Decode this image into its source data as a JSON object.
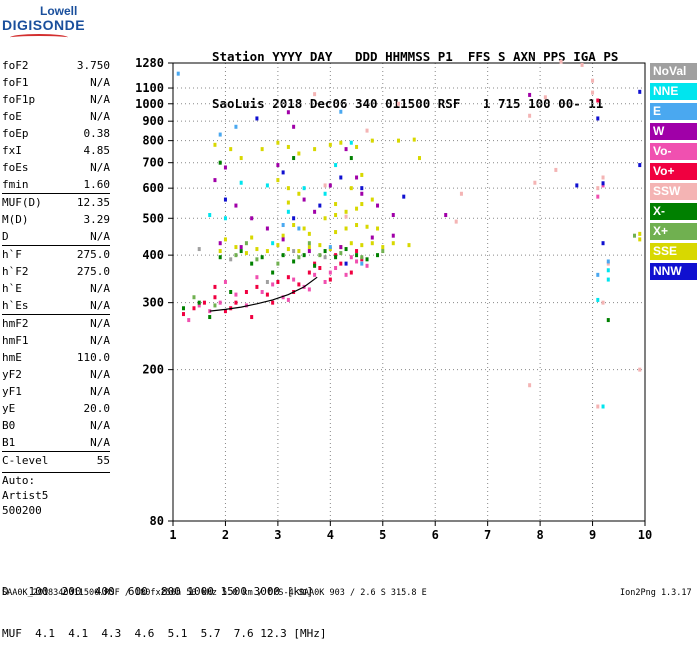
{
  "logo": {
    "line1": "Lowell",
    "line2": "DIGISONDE"
  },
  "header": {
    "line1": "Station YYYY DAY   DDD HHMMSS P1  FFS S AXN PPS IGA PS",
    "line2": "SaoLuis 2018 Dec06 340 011500 RSF   1 715 100 00- 11"
  },
  "params": [
    {
      "k": "foF2",
      "v": "3.750"
    },
    {
      "k": "foF1",
      "v": "N/A"
    },
    {
      "k": "foF1p",
      "v": "N/A"
    },
    {
      "k": "foE",
      "v": "N/A"
    },
    {
      "k": "foEp",
      "v": "0.38"
    },
    {
      "k": "fxI",
      "v": "4.85"
    },
    {
      "k": "foEs",
      "v": "N/A"
    },
    {
      "k": "fmin",
      "v": "1.60"
    },
    {
      "k": "MUF(D)",
      "v": "12.35"
    },
    {
      "k": "M(D)",
      "v": "3.29"
    },
    {
      "k": "D",
      "v": "N/A"
    },
    {
      "k": "h`F",
      "v": "275.0"
    },
    {
      "k": "h`F2",
      "v": "275.0"
    },
    {
      "k": "h`E",
      "v": "N/A"
    },
    {
      "k": "h`Es",
      "v": "N/A"
    },
    {
      "k": "hmF2",
      "v": "N/A"
    },
    {
      "k": "hmF1",
      "v": "N/A"
    },
    {
      "k": "hmE",
      "v": "110.0"
    },
    {
      "k": "yF2",
      "v": "N/A"
    },
    {
      "k": "yF1",
      "v": "N/A"
    },
    {
      "k": "yE",
      "v": "20.0"
    },
    {
      "k": "B0",
      "v": "N/A"
    },
    {
      "k": "B1",
      "v": "N/A"
    },
    {
      "k": "C-level",
      "v": "55"
    }
  ],
  "auto": [
    "Auto:",
    "Artist5",
    "500200"
  ],
  "legend": [
    {
      "label": "NoVal",
      "color": "#a0a0a0"
    },
    {
      "label": "NNE",
      "color": "#00e5ee"
    },
    {
      "label": "E",
      "color": "#4aa8f0"
    },
    {
      "label": "W",
      "color": "#a000a8"
    },
    {
      "label": "Vo-",
      "color": "#f050b0"
    },
    {
      "label": "Vo+",
      "color": "#f00040"
    },
    {
      "label": "SSW",
      "color": "#f4b4b4"
    },
    {
      "label": "X-",
      "color": "#008000"
    },
    {
      "label": "X+",
      "color": "#70b050"
    },
    {
      "label": "SSE",
      "color": "#d8d800"
    },
    {
      "label": "NNW",
      "color": "#1010d0"
    }
  ],
  "bottom": {
    "line1": "D   100  200  400  600  800 1000 1500 3000 [km]",
    "line2": "MUF  4.1  4.1  4.3  4.6  5.1  5.7  7.6 12.3 [MHz]"
  },
  "footer": {
    "left": "SAA0K_2018340011500.RSF / 180fx256h 50 kHz 5.0 km / DPS-4 SAA0K 903 / 2.6 S 315.8 E",
    "right": "Ion2Png 1.3.17"
  },
  "chart_data": {
    "type": "scatter",
    "title": "",
    "xlabel": "",
    "ylabel": "",
    "xlim": [
      1,
      10
    ],
    "ylim": [
      80,
      1280
    ],
    "yscale": "log",
    "x_ticks": [
      1,
      2,
      3,
      4,
      5,
      6,
      7,
      8,
      9,
      10
    ],
    "y_ticks": [
      80,
      200,
      300,
      400,
      500,
      600,
      700,
      800,
      900,
      1000,
      1100,
      1280
    ],
    "grid": true,
    "legend_position": "right",
    "series": [
      {
        "name": "SSE",
        "color": "#d8d800",
        "points": [
          [
            1.8,
            780
          ],
          [
            2.1,
            760
          ],
          [
            2.3,
            720
          ],
          [
            2.7,
            760
          ],
          [
            3.0,
            790
          ],
          [
            3.2,
            770
          ],
          [
            3.4,
            740
          ],
          [
            3.7,
            760
          ],
          [
            4.0,
            780
          ],
          [
            4.2,
            790
          ],
          [
            4.5,
            770
          ],
          [
            4.8,
            800
          ],
          [
            5.3,
            800
          ],
          [
            5.6,
            805
          ],
          [
            1.9,
            410
          ],
          [
            2.2,
            420
          ],
          [
            2.4,
            405
          ],
          [
            2.6,
            415
          ],
          [
            2.8,
            410
          ],
          [
            3.0,
            425
          ],
          [
            3.2,
            415
          ],
          [
            3.4,
            410
          ],
          [
            3.6,
            420
          ],
          [
            3.8,
            425
          ],
          [
            4.0,
            415
          ],
          [
            4.2,
            420
          ],
          [
            4.4,
            430
          ],
          [
            4.6,
            425
          ],
          [
            4.8,
            430
          ],
          [
            5.0,
            420
          ],
          [
            5.2,
            430
          ],
          [
            5.5,
            425
          ],
          [
            2.0,
            440
          ],
          [
            2.5,
            445
          ],
          [
            3.1,
            450
          ],
          [
            3.6,
            455
          ],
          [
            4.1,
            460
          ],
          [
            4.3,
            470
          ],
          [
            4.5,
            480
          ],
          [
            4.7,
            475
          ],
          [
            4.9,
            470
          ],
          [
            3.9,
            500
          ],
          [
            4.1,
            510
          ],
          [
            4.3,
            520
          ],
          [
            4.5,
            530
          ],
          [
            4.6,
            545
          ],
          [
            4.8,
            560
          ],
          [
            3.3,
            480
          ],
          [
            3.5,
            470
          ],
          [
            9.9,
            455
          ],
          [
            9.9,
            440
          ],
          [
            3.0,
            630
          ],
          [
            3.2,
            600
          ],
          [
            3.4,
            580
          ],
          [
            3.2,
            550
          ],
          [
            4.1,
            545
          ],
          [
            4.4,
            600
          ],
          [
            4.6,
            650
          ],
          [
            5.7,
            720
          ]
        ]
      },
      {
        "name": "Vo+",
        "color": "#f00040",
        "points": [
          [
            1.2,
            280
          ],
          [
            1.4,
            290
          ],
          [
            1.6,
            300
          ],
          [
            1.8,
            310
          ],
          [
            2.0,
            285
          ],
          [
            2.2,
            300
          ],
          [
            2.4,
            320
          ],
          [
            2.6,
            330
          ],
          [
            2.8,
            315
          ],
          [
            3.0,
            340
          ],
          [
            3.2,
            350
          ],
          [
            3.4,
            335
          ],
          [
            3.6,
            360
          ],
          [
            3.8,
            370
          ],
          [
            4.0,
            345
          ],
          [
            4.2,
            380
          ],
          [
            4.4,
            360
          ],
          [
            4.6,
            390
          ],
          [
            1.8,
            330
          ],
          [
            2.1,
            290
          ],
          [
            2.5,
            275
          ],
          [
            2.9,
            300
          ],
          [
            3.3,
            320
          ],
          [
            3.7,
            380
          ],
          [
            4.1,
            400
          ],
          [
            4.5,
            410
          ],
          [
            9.1,
            1020
          ]
        ]
      },
      {
        "name": "Vo-",
        "color": "#f050b0",
        "points": [
          [
            1.3,
            270
          ],
          [
            1.5,
            295
          ],
          [
            1.7,
            285
          ],
          [
            1.9,
            300
          ],
          [
            2.2,
            315
          ],
          [
            2.4,
            295
          ],
          [
            2.7,
            320
          ],
          [
            2.9,
            335
          ],
          [
            3.1,
            310
          ],
          [
            3.3,
            345
          ],
          [
            3.5,
            330
          ],
          [
            3.7,
            355
          ],
          [
            3.9,
            340
          ],
          [
            4.1,
            370
          ],
          [
            4.3,
            355
          ],
          [
            4.5,
            385
          ],
          [
            4.7,
            375
          ],
          [
            2.0,
            340
          ],
          [
            2.6,
            350
          ],
          [
            3.2,
            305
          ],
          [
            3.6,
            325
          ],
          [
            4.0,
            360
          ],
          [
            4.4,
            395
          ],
          [
            9.2,
            610
          ],
          [
            9.1,
            570
          ]
        ]
      },
      {
        "name": "W",
        "color": "#a000a8",
        "points": [
          [
            1.8,
            630
          ],
          [
            2.0,
            680
          ],
          [
            2.2,
            540
          ],
          [
            2.5,
            500
          ],
          [
            2.8,
            470
          ],
          [
            3.0,
            690
          ],
          [
            3.2,
            950
          ],
          [
            3.3,
            870
          ],
          [
            3.5,
            560
          ],
          [
            3.7,
            520
          ],
          [
            4.0,
            610
          ],
          [
            4.3,
            760
          ],
          [
            4.5,
            640
          ],
          [
            4.6,
            580
          ],
          [
            4.9,
            540
          ],
          [
            5.2,
            510
          ],
          [
            1.9,
            430
          ],
          [
            2.3,
            420
          ],
          [
            3.1,
            440
          ],
          [
            3.6,
            410
          ],
          [
            4.2,
            420
          ],
          [
            4.8,
            445
          ],
          [
            5.2,
            450
          ],
          [
            7.8,
            1055
          ],
          [
            6.2,
            510
          ]
        ]
      },
      {
        "name": "NNW",
        "color": "#1010d0",
        "points": [
          [
            2.6,
            915
          ],
          [
            3.1,
            660
          ],
          [
            3.3,
            500
          ],
          [
            3.8,
            540
          ],
          [
            4.2,
            640
          ],
          [
            4.6,
            600
          ],
          [
            2.0,
            560
          ],
          [
            9.1,
            915
          ],
          [
            9.2,
            430
          ],
          [
            9.9,
            1075
          ],
          [
            9.9,
            690
          ],
          [
            8.7,
            610
          ],
          [
            9.2,
            618
          ],
          [
            5.4,
            570
          ],
          [
            4.3,
            380
          ]
        ]
      },
      {
        "name": "X-",
        "color": "#008000",
        "points": [
          [
            1.2,
            290
          ],
          [
            1.5,
            300
          ],
          [
            1.7,
            275
          ],
          [
            1.9,
            395
          ],
          [
            2.1,
            320
          ],
          [
            2.3,
            410
          ],
          [
            2.5,
            380
          ],
          [
            2.7,
            395
          ],
          [
            2.9,
            360
          ],
          [
            3.1,
            400
          ],
          [
            3.3,
            385
          ],
          [
            3.5,
            400
          ],
          [
            3.7,
            375
          ],
          [
            3.9,
            410
          ],
          [
            4.1,
            395
          ],
          [
            4.3,
            415
          ],
          [
            4.5,
            400
          ],
          [
            4.7,
            390
          ],
          [
            4.9,
            400
          ],
          [
            9.3,
            270
          ],
          [
            1.9,
            700
          ],
          [
            3.3,
            720
          ],
          [
            4.4,
            720
          ]
        ]
      },
      {
        "name": "X+",
        "color": "#70b050",
        "points": [
          [
            1.4,
            310
          ],
          [
            1.8,
            295
          ],
          [
            2.2,
            400
          ],
          [
            2.6,
            390
          ],
          [
            3.0,
            380
          ],
          [
            3.4,
            395
          ],
          [
            3.8,
            400
          ],
          [
            4.2,
            405
          ],
          [
            4.6,
            395
          ],
          [
            5.0,
            410
          ],
          [
            2.4,
            430
          ],
          [
            3.6,
            430
          ],
          [
            9.8,
            450
          ]
        ]
      },
      {
        "name": "SSW",
        "color": "#f4b4b4",
        "points": [
          [
            3.7,
            1060
          ],
          [
            3.9,
            610
          ],
          [
            4.3,
            505
          ],
          [
            4.7,
            850
          ],
          [
            5.3,
            1000
          ],
          [
            8.1,
            1040
          ],
          [
            8.4,
            1290
          ],
          [
            8.8,
            1265
          ],
          [
            9.0,
            1150
          ],
          [
            9.0,
            1070
          ],
          [
            9.1,
            600
          ],
          [
            9.2,
            640
          ],
          [
            9.3,
            380
          ],
          [
            9.2,
            300
          ],
          [
            8.3,
            670
          ],
          [
            7.8,
            930
          ],
          [
            7.9,
            620
          ],
          [
            9.1,
            160
          ],
          [
            7.8,
            182
          ],
          [
            9.9,
            200
          ],
          [
            6.4,
            490
          ],
          [
            6.5,
            580
          ]
        ]
      },
      {
        "name": "NNE",
        "color": "#00e5ee",
        "points": [
          [
            1.7,
            510
          ],
          [
            2.0,
            500
          ],
          [
            2.3,
            620
          ],
          [
            2.8,
            610
          ],
          [
            3.2,
            520
          ],
          [
            3.5,
            600
          ],
          [
            3.9,
            580
          ],
          [
            4.1,
            690
          ],
          [
            4.4,
            790
          ],
          [
            2.9,
            430
          ],
          [
            9.3,
            365
          ],
          [
            9.3,
            345
          ],
          [
            9.2,
            160
          ],
          [
            9.1,
            305
          ]
        ]
      },
      {
        "name": "E",
        "color": "#4aa8f0",
        "points": [
          [
            1.9,
            830
          ],
          [
            2.2,
            870
          ],
          [
            3.1,
            480
          ],
          [
            3.4,
            470
          ],
          [
            4.0,
            420
          ],
          [
            4.2,
            953
          ],
          [
            4.6,
            380
          ],
          [
            9.3,
            385
          ],
          [
            9.1,
            355
          ],
          [
            1.1,
            1200
          ]
        ]
      },
      {
        "name": "NoVal",
        "color": "#a0a0a0",
        "points": [
          [
            1.5,
            415
          ],
          [
            2.1,
            390
          ],
          [
            2.8,
            340
          ],
          [
            3.3,
            410
          ],
          [
            3.9,
            395
          ]
        ]
      }
    ],
    "trace": {
      "name": "h'F trace",
      "color": "#000000",
      "points": [
        [
          1.7,
          285
        ],
        [
          2.0,
          288
        ],
        [
          2.3,
          292
        ],
        [
          2.6,
          298
        ],
        [
          2.9,
          305
        ],
        [
          3.2,
          315
        ],
        [
          3.5,
          330
        ],
        [
          3.75,
          350
        ]
      ]
    }
  }
}
